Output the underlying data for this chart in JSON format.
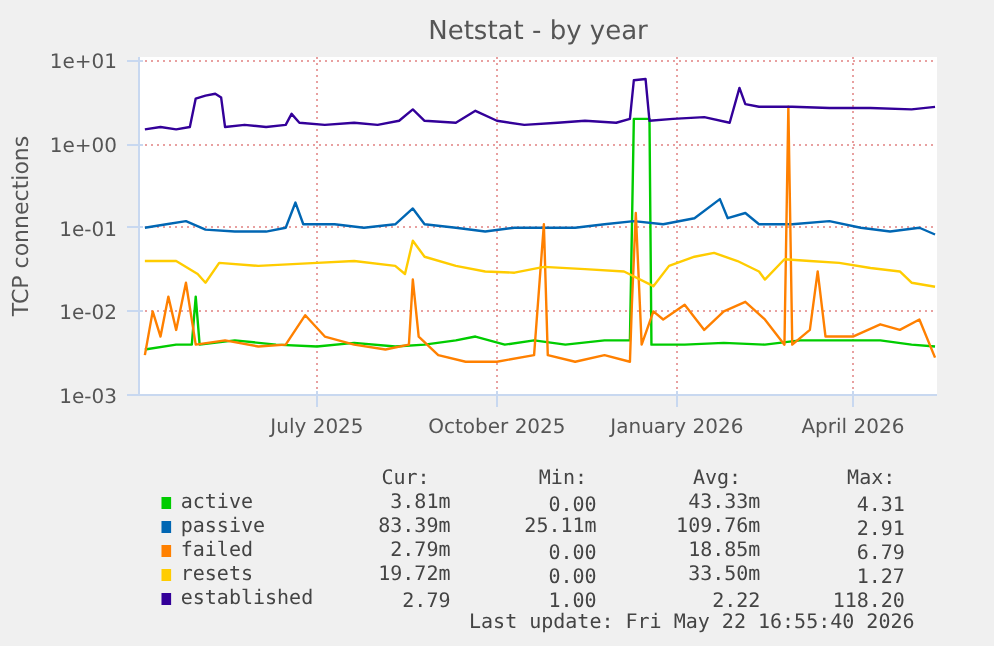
{
  "chart_data": {
    "type": "line",
    "title": "Netstat - by year",
    "ylabel": "TCP connections",
    "log": "y",
    "grid": true,
    "legend": "bottom",
    "xlim": [
      "2025-04-01",
      "2026-05-14"
    ],
    "ylim": [
      0.001,
      11
    ],
    "xticks": [
      {
        "value": "2025-07-01",
        "label": "July 2025"
      },
      {
        "value": "2025-10-01",
        "label": "October 2025"
      },
      {
        "value": "2026-01-01",
        "label": "January 2026"
      },
      {
        "value": "2026-04-01",
        "label": "April 2026"
      }
    ],
    "yticks": [
      {
        "value": 0.001,
        "label": "1e-03"
      },
      {
        "value": 0.01,
        "label": "1e-02"
      },
      {
        "value": 0.1,
        "label": "1e-01"
      },
      {
        "value": 1,
        "label": "1e+00"
      },
      {
        "value": 10,
        "label": "1e+01"
      }
    ],
    "series": [
      {
        "name": "active",
        "color": "#00cc00",
        "x": [
          "2025-04-04",
          "2025-04-20",
          "2025-04-28",
          "2025-04-30",
          "2025-05-02",
          "2025-05-20",
          "2025-06-10",
          "2025-07-01",
          "2025-07-20",
          "2025-08-10",
          "2025-08-25",
          "2025-09-10",
          "2025-09-20",
          "2025-10-05",
          "2025-10-20",
          "2025-11-05",
          "2025-11-25",
          "2025-12-08",
          "2025-12-10",
          "2025-12-18",
          "2025-12-19",
          "2026-01-05",
          "2026-01-25",
          "2026-02-15",
          "2026-03-05",
          "2026-03-25",
          "2026-04-15",
          "2026-05-01",
          "2026-05-13"
        ],
        "values": [
          0.0035,
          0.004,
          0.004,
          0.015,
          0.004,
          0.0045,
          0.004,
          0.0038,
          0.0042,
          0.0038,
          0.004,
          0.0045,
          0.005,
          0.004,
          0.0045,
          0.004,
          0.0045,
          0.0045,
          2.0,
          2.0,
          0.004,
          0.004,
          0.0042,
          0.004,
          0.0045,
          0.0045,
          0.0045,
          0.004,
          0.0038
        ]
      },
      {
        "name": "passive",
        "color": "#0066b3",
        "x": [
          "2025-04-04",
          "2025-04-15",
          "2025-04-25",
          "2025-05-05",
          "2025-05-20",
          "2025-06-05",
          "2025-06-15",
          "2025-06-20",
          "2025-06-24",
          "2025-07-10",
          "2025-07-25",
          "2025-08-10",
          "2025-08-19",
          "2025-08-25",
          "2025-09-10",
          "2025-09-25",
          "2025-10-10",
          "2025-10-25",
          "2025-11-10",
          "2025-11-25",
          "2025-12-10",
          "2025-12-25",
          "2026-01-10",
          "2026-01-23",
          "2026-01-27",
          "2026-02-05",
          "2026-02-12",
          "2026-03-01",
          "2026-03-20",
          "2026-04-05",
          "2026-04-20",
          "2026-05-05",
          "2026-05-13"
        ],
        "values": [
          0.1,
          0.11,
          0.12,
          0.095,
          0.09,
          0.09,
          0.1,
          0.2,
          0.11,
          0.11,
          0.1,
          0.11,
          0.17,
          0.11,
          0.1,
          0.09,
          0.1,
          0.1,
          0.1,
          0.11,
          0.12,
          0.11,
          0.13,
          0.22,
          0.13,
          0.15,
          0.11,
          0.11,
          0.12,
          0.1,
          0.09,
          0.1,
          0.083
        ]
      },
      {
        "name": "failed",
        "color": "#ff8000",
        "x": [
          "2025-04-04",
          "2025-04-08",
          "2025-04-12",
          "2025-04-16",
          "2025-04-20",
          "2025-04-25",
          "2025-04-30",
          "2025-05-15",
          "2025-06-01",
          "2025-06-15",
          "2025-06-25",
          "2025-07-05",
          "2025-07-20",
          "2025-08-05",
          "2025-08-17",
          "2025-08-19",
          "2025-08-22",
          "2025-09-01",
          "2025-09-15",
          "2025-10-01",
          "2025-10-20",
          "2025-10-25",
          "2025-10-27",
          "2025-11-10",
          "2025-11-25",
          "2025-12-08",
          "2025-12-09",
          "2025-12-11",
          "2025-12-14",
          "2025-12-20",
          "2025-12-25",
          "2026-01-05",
          "2026-01-15",
          "2026-01-25",
          "2026-02-05",
          "2026-02-15",
          "2026-02-25",
          "2026-02-27",
          "2026-03-01",
          "2026-03-10",
          "2026-03-14",
          "2026-03-18",
          "2026-04-01",
          "2026-04-15",
          "2026-04-25",
          "2026-05-05",
          "2026-05-13"
        ],
        "values": [
          0.003,
          0.01,
          0.005,
          0.015,
          0.006,
          0.022,
          0.004,
          0.0045,
          0.0038,
          0.004,
          0.009,
          0.005,
          0.004,
          0.0035,
          0.004,
          0.024,
          0.005,
          0.003,
          0.0025,
          0.0025,
          0.003,
          0.11,
          0.003,
          0.0025,
          0.003,
          0.0025,
          0.012,
          0.15,
          0.004,
          0.01,
          0.008,
          0.012,
          0.006,
          0.01,
          0.013,
          0.008,
          0.004,
          2.8,
          0.004,
          0.006,
          0.03,
          0.005,
          0.005,
          0.007,
          0.006,
          0.008,
          0.0028
        ]
      },
      {
        "name": "resets",
        "color": "#ffcc00",
        "x": [
          "2025-04-04",
          "2025-04-20",
          "2025-05-01",
          "2025-05-05",
          "2025-05-12",
          "2025-06-01",
          "2025-07-01",
          "2025-07-20",
          "2025-08-10",
          "2025-08-15",
          "2025-08-19",
          "2025-08-25",
          "2025-09-10",
          "2025-09-25",
          "2025-10-10",
          "2025-10-25",
          "2025-11-15",
          "2025-12-05",
          "2025-12-20",
          "2025-12-28",
          "2026-01-10",
          "2026-01-20",
          "2026-02-01",
          "2026-02-12",
          "2026-02-15",
          "2026-02-25",
          "2026-03-10",
          "2026-03-25",
          "2026-04-10",
          "2026-04-25",
          "2026-05-01",
          "2026-05-13"
        ],
        "values": [
          0.04,
          0.04,
          0.028,
          0.022,
          0.038,
          0.035,
          0.038,
          0.04,
          0.035,
          0.028,
          0.07,
          0.045,
          0.035,
          0.03,
          0.029,
          0.034,
          0.032,
          0.03,
          0.02,
          0.035,
          0.045,
          0.05,
          0.04,
          0.03,
          0.024,
          0.042,
          0.04,
          0.038,
          0.033,
          0.03,
          0.022,
          0.0197
        ]
      },
      {
        "name": "established",
        "color": "#330099",
        "x": [
          "2025-04-04",
          "2025-04-12",
          "2025-04-20",
          "2025-04-27",
          "2025-04-30",
          "2025-05-05",
          "2025-05-10",
          "2025-05-13",
          "2025-05-15",
          "2025-05-25",
          "2025-06-05",
          "2025-06-15",
          "2025-06-18",
          "2025-06-22",
          "2025-07-05",
          "2025-07-20",
          "2025-08-01",
          "2025-08-12",
          "2025-08-19",
          "2025-08-25",
          "2025-09-10",
          "2025-09-20",
          "2025-10-01",
          "2025-10-15",
          "2025-11-01",
          "2025-11-15",
          "2025-12-01",
          "2025-12-08",
          "2025-12-10",
          "2025-12-16",
          "2025-12-18",
          "2025-12-30",
          "2026-01-15",
          "2026-01-28",
          "2026-02-02",
          "2026-02-05",
          "2026-02-12",
          "2026-03-01",
          "2026-03-20",
          "2026-04-10",
          "2026-05-01",
          "2026-05-13"
        ],
        "values": [
          1.5,
          1.6,
          1.5,
          1.6,
          3.5,
          3.8,
          4.0,
          3.6,
          1.6,
          1.7,
          1.6,
          1.7,
          2.3,
          1.8,
          1.7,
          1.8,
          1.7,
          1.9,
          2.6,
          1.9,
          1.8,
          2.5,
          1.9,
          1.7,
          1.8,
          1.9,
          1.8,
          2.0,
          5.8,
          6.0,
          1.9,
          2.0,
          2.1,
          1.8,
          4.7,
          3.0,
          2.8,
          2.8,
          2.7,
          2.7,
          2.6,
          2.79
        ]
      }
    ],
    "annotations": [
      "Cur:",
      "Min:",
      "Avg:",
      "Max:",
      "3.81m",
      "0.00",
      "43.33m",
      "4.31",
      "83.39m",
      "25.11m",
      "109.76m",
      "2.91",
      "2.79m",
      "0.00",
      "18.85m",
      "6.79",
      "19.72m",
      "0.00",
      "33.50m",
      "1.27",
      "2.79",
      "1.00",
      "2.22",
      "118.20",
      "Last update: Fri May 22 16:55:40 2026"
    ]
  }
}
